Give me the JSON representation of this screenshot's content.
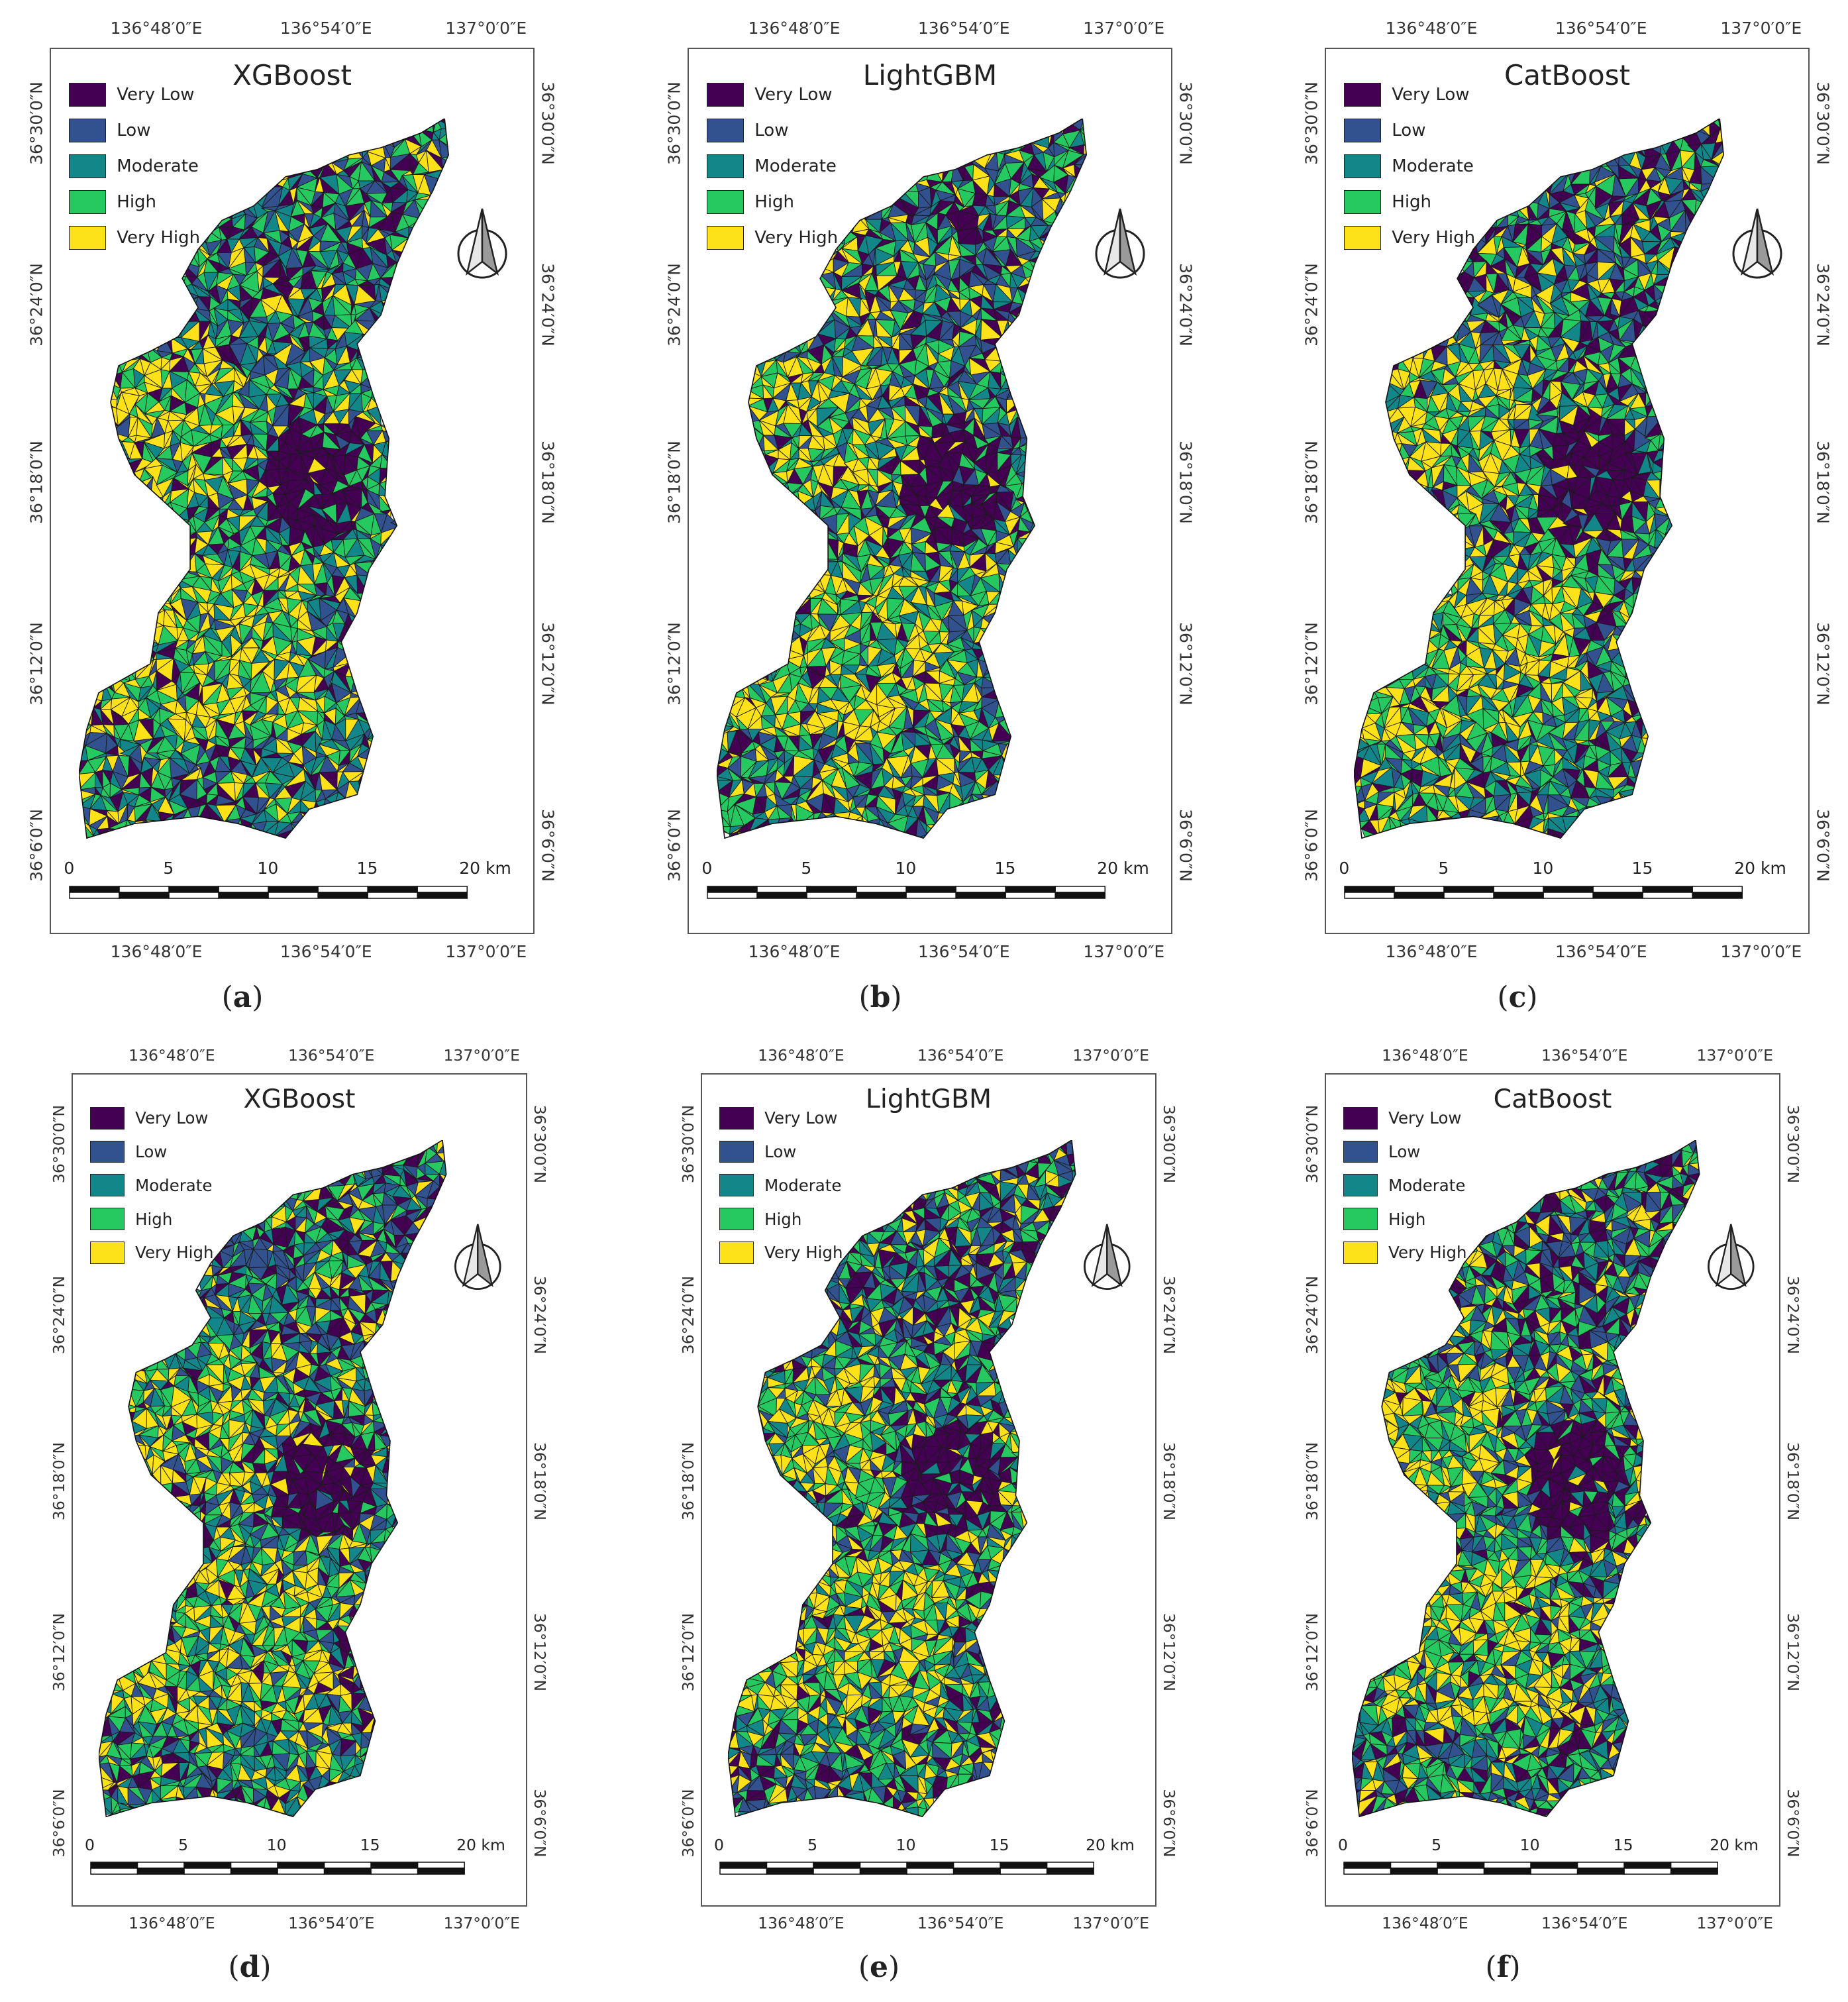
{
  "legend": {
    "classes": [
      {
        "label": "Very Low",
        "color": "#440154"
      },
      {
        "label": "Low",
        "color": "#31528f"
      },
      {
        "label": "Moderate",
        "color": "#13868a"
      },
      {
        "label": "High",
        "color": "#26c860"
      },
      {
        "label": "Very High",
        "color": "#fde219"
      }
    ]
  },
  "axis": {
    "lon_ticks": [
      "136°48′0″E",
      "136°54′0″E",
      "137°0′0″E"
    ],
    "lat_ticks": [
      "36°30′0″N",
      "36°24′0″N",
      "36°18′0″N",
      "36°12′0″N",
      "36°6′0″N"
    ]
  },
  "scale_bar": {
    "labels": [
      "0",
      "5",
      "10",
      "15",
      "20 km"
    ]
  },
  "panels": [
    {
      "title": "XGBoost",
      "caption_letter": "a"
    },
    {
      "title": "LightGBM",
      "caption_letter": "b"
    },
    {
      "title": "CatBoost",
      "caption_letter": "c"
    },
    {
      "title": "XGBoost",
      "caption_letter": "d"
    },
    {
      "title": "LightGBM",
      "caption_letter": "e"
    },
    {
      "title": "CatBoost",
      "caption_letter": "f"
    }
  ]
}
